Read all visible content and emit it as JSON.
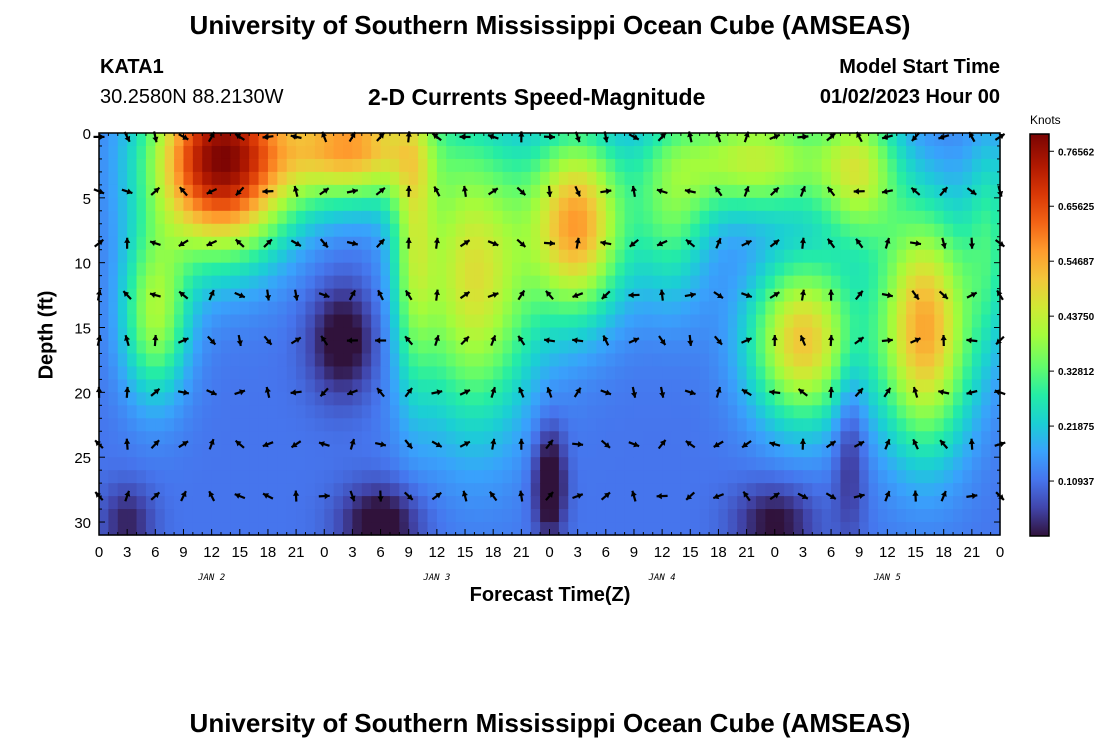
{
  "header": {
    "title": "University of Southern Mississippi Ocean Cube (AMSEAS)",
    "station": "KATA1",
    "coords": "30.2580N  88.2130W",
    "subtitle": "2-D Currents Speed-Magnitude",
    "model_start_label": "Model Start Time",
    "model_start_value": "01/02/2023 Hour 00"
  },
  "footer": {
    "title": "University of Southern Mississippi Ocean Cube (AMSEAS)"
  },
  "chart_data": {
    "type": "heatmap",
    "title": "2-D Currents Speed-Magnitude",
    "xlabel": "Forecast Time(Z)",
    "ylabel": "Depth (ft)",
    "x_range_hours": [
      0,
      96
    ],
    "y_range_ft": [
      0,
      31
    ],
    "x_tick_hours": [
      0,
      3,
      6,
      9,
      12,
      15,
      18,
      21,
      24,
      27,
      30,
      33,
      36,
      39,
      42,
      45,
      48,
      51,
      54,
      57,
      60,
      63,
      66,
      69,
      72,
      75,
      78,
      81,
      84,
      87,
      90,
      93,
      96
    ],
    "x_tick_labels": [
      "0",
      "3",
      "6",
      "9",
      "12",
      "15",
      "18",
      "21",
      "0",
      "3",
      "6",
      "9",
      "12",
      "15",
      "18",
      "21",
      "0",
      "3",
      "6",
      "9",
      "12",
      "15",
      "18",
      "21",
      "0",
      "3",
      "6",
      "9",
      "12",
      "15",
      "18",
      "21",
      "0"
    ],
    "day_labels": [
      {
        "label": "JAN 2",
        "hour": 12
      },
      {
        "label": "JAN 3",
        "hour": 36
      },
      {
        "label": "JAN 4",
        "hour": 60
      },
      {
        "label": "JAN 5",
        "hour": 84
      }
    ],
    "y_ticks": [
      0,
      5,
      10,
      15,
      20,
      25,
      30
    ],
    "y_tick_labels": [
      "0",
      "5",
      "10",
      "15",
      "20",
      "25",
      "30"
    ],
    "colorbar": {
      "units": "Knots",
      "min": 0,
      "max": 0.8,
      "ticks": [
        0.76562,
        0.65625,
        0.54687,
        0.4375,
        0.32812,
        0.21875,
        0.10937
      ],
      "tick_labels": [
        "0.76562",
        "0.65625",
        "0.54687",
        "0.43750",
        "0.32812",
        "0.21875",
        "0.10937"
      ]
    },
    "arrow_rows_ft": [
      0.3,
      4.5,
      8.5,
      12.5,
      16.0,
      20.0,
      24.0,
      28.0
    ],
    "arrow_step_hours": 3
  }
}
